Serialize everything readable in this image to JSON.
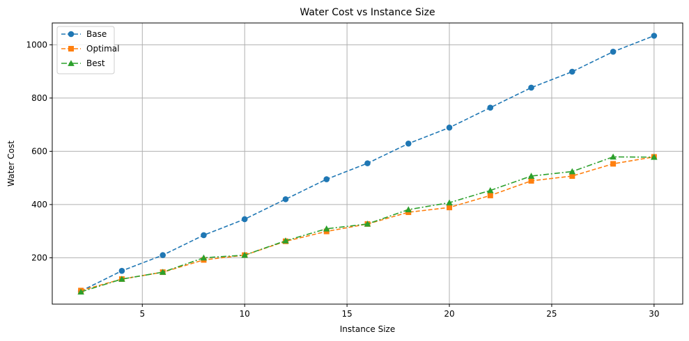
{
  "chart_data": {
    "type": "line",
    "title": "Water Cost vs Instance Size",
    "xlabel": "Instance Size",
    "ylabel": "Water Cost",
    "xlim": [
      0.6,
      31.4
    ],
    "ylim": [
      26,
      1082
    ],
    "xticks": [
      5,
      10,
      15,
      20,
      25,
      30
    ],
    "yticks": [
      200,
      400,
      600,
      800,
      1000
    ],
    "grid": true,
    "legend_position": "top-left",
    "x": [
      2,
      4,
      6,
      8,
      10,
      12,
      14,
      16,
      18,
      20,
      22,
      24,
      26,
      28,
      30
    ],
    "series": [
      {
        "name": "Base",
        "color": "#1f77b4",
        "marker": "circle",
        "linestyle": "dashed",
        "values": [
          75,
          151,
          210,
          285,
          345,
          420,
          495,
          555,
          629,
          689,
          764,
          839,
          899,
          974,
          1034
        ]
      },
      {
        "name": "Optimal",
        "color": "#ff7f0e",
        "marker": "square",
        "linestyle": "dashed",
        "values": [
          77,
          120,
          146,
          192,
          210,
          262,
          299,
          327,
          371,
          389,
          434,
          489,
          507,
          553,
          579
        ]
      },
      {
        "name": "Best",
        "color": "#2ca02c",
        "marker": "triangle",
        "linestyle": "dashdot",
        "values": [
          72,
          120,
          146,
          200,
          210,
          264,
          309,
          327,
          381,
          407,
          453,
          507,
          524,
          579,
          578
        ]
      }
    ]
  }
}
